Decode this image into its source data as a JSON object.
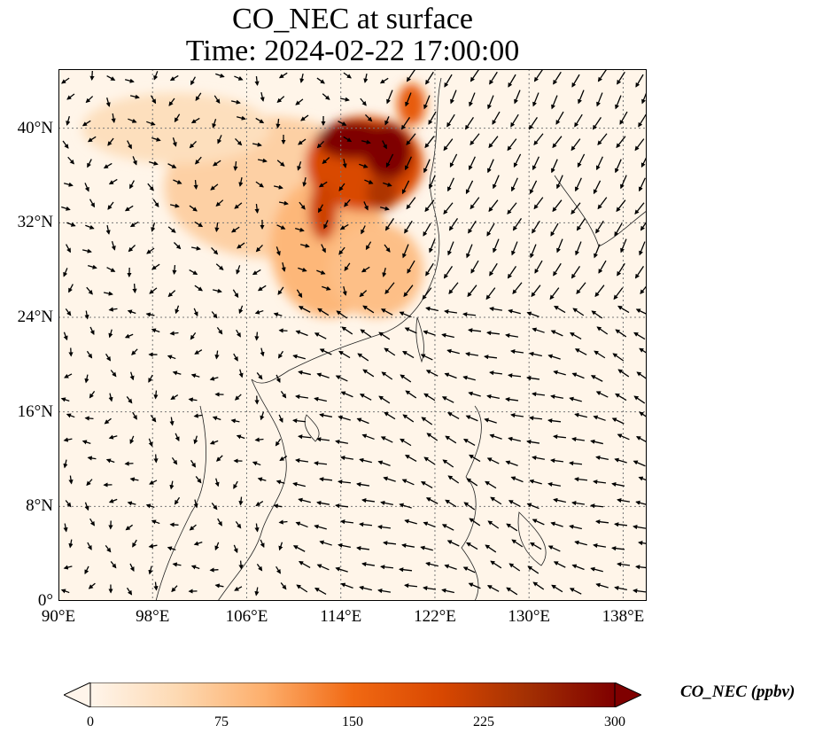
{
  "title": {
    "line1": "CO_NEC at surface",
    "line2": "Time: 2024-02-22 17:00:00"
  },
  "map": {
    "type": "filled contour map with wind vectors",
    "lon_range": [
      90,
      140
    ],
    "lat_range": [
      0,
      45
    ],
    "lon_ticks": [
      {
        "value": 90,
        "label": "90°E"
      },
      {
        "value": 98,
        "label": "98°E"
      },
      {
        "value": 106,
        "label": "106°E"
      },
      {
        "value": 114,
        "label": "114°E"
      },
      {
        "value": 122,
        "label": "122°E"
      },
      {
        "value": 130,
        "label": "130°E"
      },
      {
        "value": 138,
        "label": "138°E"
      }
    ],
    "lat_ticks": [
      {
        "value": 0,
        "label": "0°"
      },
      {
        "value": 8,
        "label": "8°N"
      },
      {
        "value": 16,
        "label": "16°N"
      },
      {
        "value": 24,
        "label": "24°N"
      },
      {
        "value": 32,
        "label": "32°N"
      },
      {
        "value": 40,
        "label": "40°N"
      }
    ],
    "grid": true,
    "background_color": "#fff5e9",
    "plumes": [
      {
        "lon": 108,
        "lat": 35,
        "r_lon": 9,
        "r_lat": 6,
        "value": 60
      },
      {
        "lon": 100,
        "lat": 40,
        "r_lon": 8,
        "r_lat": 3,
        "value": 40
      },
      {
        "lon": 113,
        "lat": 30,
        "r_lon": 5,
        "r_lat": 6,
        "value": 90
      },
      {
        "lon": 117,
        "lat": 28,
        "r_lon": 4,
        "r_lat": 4,
        "value": 80
      },
      {
        "lon": 116,
        "lat": 37,
        "r_lon": 5,
        "r_lat": 4,
        "value": 200
      },
      {
        "lon": 115,
        "lat": 39,
        "r_lon": 3,
        "r_lat": 1.6,
        "value": 300
      },
      {
        "lon": 118,
        "lat": 38,
        "r_lon": 2,
        "r_lat": 2.4,
        "value": 300
      },
      {
        "lon": 112.5,
        "lat": 33,
        "r_lon": 1.2,
        "r_lat": 2.5,
        "value": 210
      },
      {
        "lon": 117.5,
        "lat": 34.5,
        "r_lon": 1.3,
        "r_lat": 1.5,
        "value": 240
      },
      {
        "lon": 120,
        "lat": 42,
        "r_lon": 1.2,
        "r_lat": 1.8,
        "value": 170
      }
    ]
  },
  "colorbar": {
    "label": "CO_NEC (ppbv)",
    "min": 0,
    "max": 300,
    "ticks": [
      "0",
      "75",
      "150",
      "225",
      "300"
    ],
    "colors": [
      "#fff5eb",
      "#fdd9b2",
      "#fdae6b",
      "#f16913",
      "#d94801",
      "#a33003",
      "#7f0000"
    ]
  }
}
